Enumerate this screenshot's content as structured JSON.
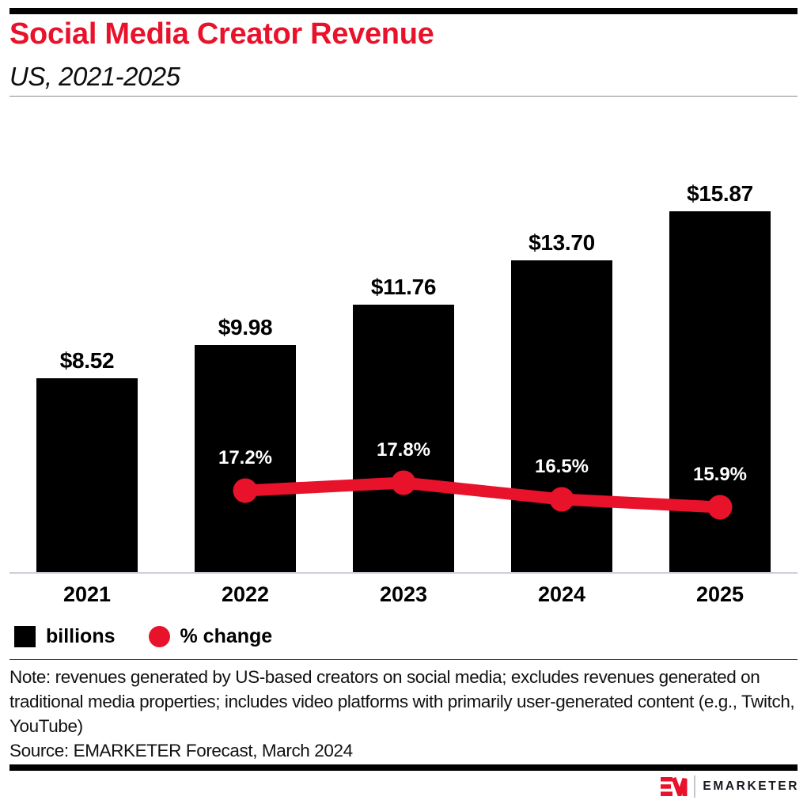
{
  "header": {
    "title": "Social Media Creator Revenue",
    "subtitle": "US, 2021-2025"
  },
  "chart_data": {
    "type": "bar",
    "combo": "bar+line",
    "categories": [
      "2021",
      "2022",
      "2023",
      "2024",
      "2025"
    ],
    "series": [
      {
        "name": "billions",
        "type": "bar",
        "values": [
          8.52,
          9.98,
          11.76,
          13.7,
          15.87
        ],
        "labels": [
          "$8.52",
          "$9.98",
          "$11.76",
          "$13.70",
          "$15.87"
        ],
        "unit": "US$ billions"
      },
      {
        "name": "% change",
        "type": "line",
        "x": [
          "2022",
          "2023",
          "2024",
          "2025"
        ],
        "values": [
          17.2,
          17.8,
          16.5,
          15.9
        ],
        "labels": [
          "17.2%",
          "17.8%",
          "16.5%",
          "15.9%"
        ]
      }
    ],
    "title": "Social Media Creator Revenue",
    "xlabel": "",
    "ylabel": "",
    "ylim": [
      0,
      17
    ],
    "y_axis_visible": false,
    "gridlines": false,
    "legend_position": "bottom-left"
  },
  "legend": {
    "items": [
      {
        "label": "billions",
        "swatch": "square",
        "color": "#000000"
      },
      {
        "label": "% change",
        "swatch": "circle",
        "color": "#E8122B"
      }
    ]
  },
  "footnote": {
    "note": "Note: revenues generated by US-based creators on social media; excludes revenues generated on traditional media properties; includes video platforms with primarily user-generated content (e.g., Twitch, YouTube)",
    "source": "Source: EMARKETER Forecast, March 2024"
  },
  "branding": {
    "logo_monogram": "EM",
    "logo_text": "EMARKETER"
  },
  "colors": {
    "accent_red": "#E8122B",
    "bar_black": "#000000",
    "axis_line": "#cdd0dc"
  }
}
